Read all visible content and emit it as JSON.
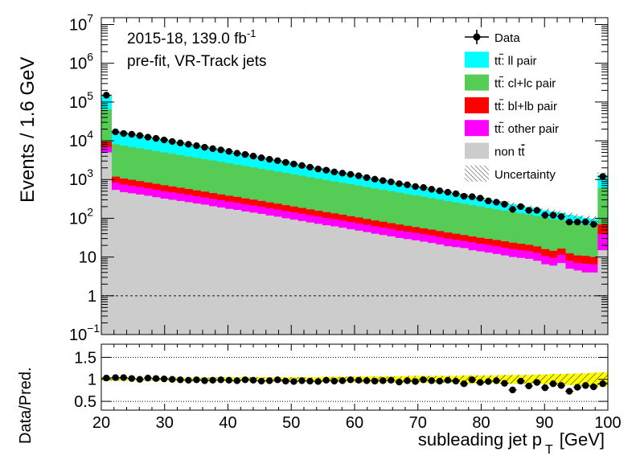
{
  "chart_data": {
    "type": "bar",
    "stacked": true,
    "upper_panel": {
      "ylabel": "Events / 1.6 GeV",
      "yscale": "log",
      "ylim": [
        0.1,
        15000000
      ],
      "y_ticks": [
        {
          "value": 0.1,
          "label": "10",
          "sup": "−1"
        },
        {
          "value": 1,
          "label": "1",
          "sup": ""
        },
        {
          "value": 10,
          "label": "10",
          "sup": ""
        },
        {
          "value": 100,
          "label": "10",
          "sup": "2"
        },
        {
          "value": 1000,
          "label": "10",
          "sup": "3"
        },
        {
          "value": 10000,
          "label": "10",
          "sup": "4"
        },
        {
          "value": 100000,
          "label": "10",
          "sup": "5"
        },
        {
          "value": 1000000,
          "label": "10",
          "sup": "6"
        },
        {
          "value": 10000000,
          "label": "10",
          "sup": "7"
        }
      ],
      "reference_line": 1,
      "annotation_line1": "2015-18, 139.0 fb",
      "annotation_line1_sup": "-1",
      "annotation_line2": "pre-fit, VR-Track jets"
    },
    "lower_panel": {
      "ylabel": "Data/Pred.",
      "ylim": [
        0.3,
        1.8
      ],
      "y_ticks": [
        {
          "value": 0.5,
          "label": "0.5"
        },
        {
          "value": 1,
          "label": "1"
        },
        {
          "value": 1.5,
          "label": "1.5"
        }
      ],
      "ratio": [
        1.03,
        1.04,
        1.04,
        1.02,
        1.0,
        1.03,
        1.02,
        1.01,
        1.0,
        0.99,
        0.98,
        0.99,
        0.97,
        0.98,
        0.99,
        0.98,
        0.97,
        0.99,
        0.98,
        0.96,
        0.97,
        0.99,
        0.96,
        0.95,
        0.97,
        0.96,
        0.95,
        0.98,
        0.96,
        0.97,
        0.99,
        0.98,
        0.97,
        0.96,
        0.97,
        0.98,
        0.94,
        0.97,
        0.95,
        0.99,
        0.97,
        0.96,
        0.98,
        0.96,
        0.9,
        0.99,
        0.93,
        0.95,
        0.97,
        0.91,
        0.76,
        0.96,
        0.85,
        0.93,
        0.81,
        0.9,
        0.86,
        0.73,
        0.82,
        0.86,
        0.83,
        0.9
      ],
      "unc_half_width": [
        0.03,
        0.03,
        0.03,
        0.03,
        0.03,
        0.03,
        0.03,
        0.03,
        0.04,
        0.04,
        0.04,
        0.04,
        0.04,
        0.04,
        0.05,
        0.05,
        0.05,
        0.05,
        0.05,
        0.05,
        0.05,
        0.05,
        0.05,
        0.05,
        0.05,
        0.05,
        0.05,
        0.06,
        0.06,
        0.06,
        0.06,
        0.07,
        0.07,
        0.07,
        0.07,
        0.07,
        0.07,
        0.08,
        0.08,
        0.08,
        0.08,
        0.08,
        0.08,
        0.08,
        0.09,
        0.09,
        0.09,
        0.09,
        0.09,
        0.1,
        0.1,
        0.1,
        0.1,
        0.11,
        0.11,
        0.12,
        0.12,
        0.13,
        0.13,
        0.14,
        0.15,
        0.16
      ]
    },
    "x": {
      "label": "subleading jet p",
      "label_sub": "T",
      "unit": "[GeV]",
      "xlim": [
        20,
        100
      ],
      "tick_labels": [
        "20",
        "30",
        "40",
        "50",
        "60",
        "70",
        "80",
        "90",
        "100"
      ],
      "bins": 62,
      "underflow_edge": 21.6,
      "overflow_edge": 98.4
    },
    "series": [
      {
        "name": "non t",
        "name_bar": "t",
        "color": "#cccccc",
        "values": [
          5000,
          540,
          470,
          440,
          410,
          380,
          350,
          320,
          300,
          280,
          260,
          240,
          225,
          205,
          190,
          175,
          165,
          150,
          140,
          130,
          118,
          110,
          100,
          92,
          85,
          78,
          72,
          66,
          62,
          57,
          52,
          48,
          44,
          40,
          37,
          34,
          31,
          29,
          27,
          25,
          23,
          21,
          19,
          18,
          17,
          15,
          14,
          13,
          12,
          11,
          10,
          9.5,
          9,
          8,
          6.5,
          6,
          7,
          5,
          4.5,
          4,
          4,
          15
        ]
      },
      {
        "name": "tt: other pair",
        "name_bar": "tt",
        "name_text": ": other pair",
        "color": "#ff00ff",
        "values": [
          1900,
          300,
          270,
          250,
          230,
          210,
          195,
          180,
          167,
          154,
          142,
          131,
          121,
          112,
          103,
          95,
          88,
          81,
          75,
          69,
          64,
          59,
          54,
          50,
          46,
          42,
          39,
          36,
          33,
          31,
          28,
          26,
          24,
          22,
          20.5,
          19,
          17.5,
          16,
          15,
          14,
          13,
          12,
          11,
          10,
          9,
          9,
          8,
          7.5,
          7,
          6.5,
          6,
          5.5,
          5.2,
          4.8,
          4,
          3.5,
          4.5,
          3,
          2.5,
          2.7,
          2.5,
          24
        ]
      },
      {
        "name": "tt: bl+lb pair",
        "name_bar": "tt",
        "name_text": ": bl+lb pair",
        "color": "#ff0000",
        "values": [
          2600,
          350,
          320,
          295,
          270,
          250,
          230,
          212,
          196,
          181,
          167,
          154,
          142,
          131,
          121,
          111,
          103,
          95,
          88,
          81,
          75,
          69,
          64,
          59,
          54,
          50,
          46,
          42,
          39,
          36,
          33,
          31,
          28,
          26,
          24,
          22,
          20.5,
          19,
          17.5,
          16,
          15,
          14,
          13,
          12,
          11,
          10,
          9.5,
          9,
          8.5,
          8,
          7.5,
          7,
          6.5,
          6,
          5.5,
          5,
          5,
          4.5,
          4,
          4,
          3.5,
          30
        ]
      },
      {
        "name": "tt: cl+lc pair",
        "name_bar": "tt",
        "name_text": ": cl+lc pair",
        "color": "#55cc55",
        "values": [
          55000,
          7000,
          6400,
          5900,
          5450,
          5050,
          4650,
          4300,
          3950,
          3650,
          3350,
          3100,
          2850,
          2650,
          2450,
          2250,
          2050,
          1900,
          1750,
          1620,
          1490,
          1370,
          1260,
          1160,
          1070,
          980,
          900,
          830,
          760,
          700,
          645,
          595,
          545,
          500,
          460,
          425,
          390,
          360,
          330,
          305,
          280,
          258,
          237,
          218,
          200,
          184,
          170,
          156,
          143,
          132,
          121,
          112,
          103,
          95,
          87,
          80,
          74,
          68,
          63,
          58,
          54,
          540
        ]
      },
      {
        "name": "tt: ll pair",
        "name_bar": "tt",
        "name_text": ": ll pair",
        "color": "#00ffff",
        "values": [
          85000,
          9500,
          8800,
          8100,
          7400,
          6800,
          6200,
          5700,
          5200,
          4750,
          4350,
          3950,
          3600,
          3300,
          3000,
          2700,
          2450,
          2250,
          2050,
          1850,
          1680,
          1530,
          1390,
          1260,
          1140,
          1030,
          940,
          850,
          770,
          700,
          635,
          575,
          520,
          470,
          425,
          385,
          350,
          315,
          285,
          260,
          235,
          212,
          192,
          174,
          158,
          143,
          130,
          117,
          106,
          96,
          87,
          79,
          71,
          64,
          58,
          53,
          48,
          43,
          39,
          35,
          32,
          700
        ]
      }
    ],
    "data": {
      "name": "Data",
      "values": [
        150000,
        17000,
        15400,
        14700,
        13600,
        12400,
        11500,
        10500,
        9600,
        8800,
        8100,
        7450,
        6790,
        6260,
        5810,
        5300,
        4770,
        4430,
        4020,
        3630,
        3320,
        3070,
        2760,
        2510,
        2300,
        2080,
        1870,
        1740,
        1570,
        1460,
        1360,
        1250,
        1120,
        1020,
        940,
        870,
        780,
        730,
        660,
        620,
        560,
        510,
        470,
        430,
        370,
        360,
        330,
        280,
        260,
        230,
        170,
        200,
        160,
        160,
        120,
        120,
        110,
        80,
        80,
        80,
        70,
        1200
      ]
    },
    "legend": {
      "position": "top-right",
      "entries": [
        {
          "label": "Data",
          "kind": "data"
        },
        {
          "label_bar": "tt",
          "label": ": ll pair",
          "kind": "fill",
          "color": "#00ffff"
        },
        {
          "label_bar": "tt",
          "label": ": cl+lc pair",
          "kind": "fill",
          "color": "#55cc55"
        },
        {
          "label_bar": "tt",
          "label": ": bl+lb pair",
          "kind": "fill",
          "color": "#ff0000"
        },
        {
          "label_bar": "tt",
          "label": ": other pair",
          "kind": "fill",
          "color": "#ff00ff"
        },
        {
          "label_bar": "t",
          "label": "non t",
          "kind": "fill",
          "color": "#cccccc"
        },
        {
          "label": "Uncertainty",
          "kind": "hatch"
        }
      ]
    },
    "ratio_band_color": "#ffff00"
  }
}
